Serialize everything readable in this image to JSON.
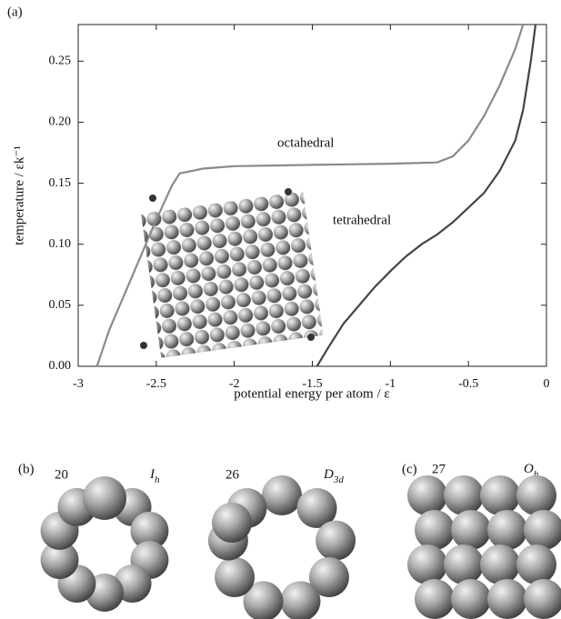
{
  "chart_data": {
    "type": "line",
    "panel_label": "(a)",
    "x_label": "potential energy per atom / ε",
    "y_label": "temperature / εk⁻¹",
    "xlim": [
      -3,
      0
    ],
    "xticks": [
      -3,
      -2.5,
      -2,
      -1.5,
      -1,
      -0.5,
      0
    ],
    "ylim": [
      0,
      0.28
    ],
    "yticks": [
      {
        "value": 0,
        "label": "0.00"
      },
      {
        "value": 0.05,
        "label": "0.05"
      },
      {
        "value": 0.1,
        "label": "0.10"
      },
      {
        "value": 0.15,
        "label": "0.15"
      },
      {
        "value": 0.2,
        "label": "0.20"
      },
      {
        "value": 0.25,
        "label": "0.25"
      }
    ],
    "series": [
      {
        "name": "octahedral",
        "color": "#8a8a8a",
        "x": [
          -2.88,
          -2.8,
          -2.7,
          -2.6,
          -2.5,
          -2.4,
          -2.35,
          -2.2,
          -2.0,
          -1.5,
          -1.0,
          -0.7,
          -0.6,
          -0.5,
          -0.4,
          -0.3,
          -0.2,
          -0.15
        ],
        "values": [
          0,
          0.03,
          0.06,
          0.09,
          0.12,
          0.148,
          0.158,
          0.162,
          0.164,
          0.165,
          0.166,
          0.167,
          0.172,
          0.185,
          0.205,
          0.23,
          0.26,
          0.28
        ]
      },
      {
        "name": "tetrahedral",
        "color": "#444444",
        "x": [
          -1.47,
          -1.4,
          -1.3,
          -1.2,
          -1.1,
          -1.0,
          -0.9,
          -0.8,
          -0.7,
          -0.6,
          -0.5,
          -0.4,
          -0.3,
          -0.2,
          -0.15,
          -0.1,
          -0.07
        ],
        "values": [
          0,
          0.015,
          0.035,
          0.05,
          0.065,
          0.078,
          0.09,
          0.1,
          0.108,
          0.118,
          0.13,
          0.142,
          0.16,
          0.185,
          0.21,
          0.25,
          0.28
        ]
      }
    ]
  },
  "panels": {
    "b": {
      "label": "(b)",
      "clusters": [
        {
          "size": "20",
          "symbol": "I",
          "subscript": "h"
        },
        {
          "size": "26",
          "symbol": "D",
          "subscript": "3d"
        }
      ]
    },
    "c": {
      "label": "(c)",
      "clusters": [
        {
          "size": "27",
          "symbol": "O",
          "subscript": "h"
        }
      ]
    }
  }
}
